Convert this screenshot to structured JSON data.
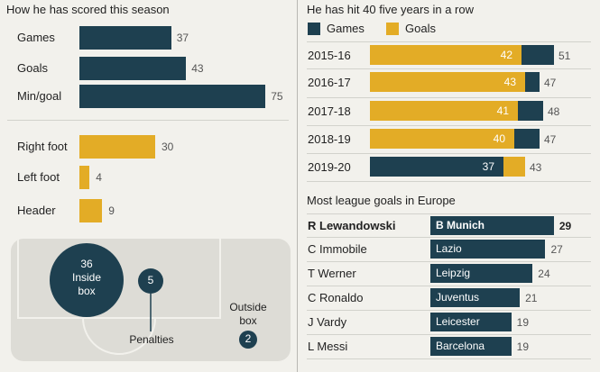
{
  "colors": {
    "navy": "#1e4050",
    "gold": "#e3ac26",
    "pitch": "#dddcd6"
  },
  "left": {
    "title": "How he has scored this season",
    "stats": [
      {
        "label": "Games",
        "value": 37
      },
      {
        "label": "Goals",
        "value": 43
      },
      {
        "label": "Min/goal",
        "value": 75
      }
    ],
    "methods": [
      {
        "label": "Right foot",
        "value": 30
      },
      {
        "label": "Left foot",
        "value": 4
      },
      {
        "label": "Header",
        "value": 9
      }
    ],
    "zones": {
      "inside_box": {
        "value": "36",
        "label_line1": "Inside",
        "label_line2": "box"
      },
      "penalties": {
        "value": "5",
        "label": "Penalties"
      },
      "outside_box": {
        "value": "2",
        "label_line1": "Outside",
        "label_line2": "box"
      }
    }
  },
  "right": {
    "title": "He has hit 40 five years in a row",
    "legend": {
      "games": "Games",
      "goals": "Goals"
    },
    "seasons": [
      {
        "season": "2015-16",
        "goals": 42,
        "games": 51
      },
      {
        "season": "2016-17",
        "goals": 43,
        "games": 47
      },
      {
        "season": "2017-18",
        "goals": 41,
        "games": 48
      },
      {
        "season": "2018-19",
        "goals": 40,
        "games": 47
      },
      {
        "season": "2019-20",
        "goals": 43,
        "games": 37
      }
    ],
    "league_title": "Most league goals in Europe",
    "league": [
      {
        "player": "R Lewandowski",
        "team": "B Munich",
        "goals": 29,
        "highlight": true
      },
      {
        "player": "C Immobile",
        "team": "Lazio",
        "goals": 27
      },
      {
        "player": "T Werner",
        "team": "Leipzig",
        "goals": 24
      },
      {
        "player": "C Ronaldo",
        "team": "Juventus",
        "goals": 21
      },
      {
        "player": "J Vardy",
        "team": "Leicester",
        "goals": 19
      },
      {
        "player": "L Messi",
        "team": "Barcelona",
        "goals": 19
      }
    ]
  },
  "chart_data": [
    {
      "type": "bar",
      "title": "How he has scored this season",
      "categories": [
        "Games",
        "Goals",
        "Min/goal"
      ],
      "values": [
        37,
        43,
        75
      ]
    },
    {
      "type": "bar",
      "title": "How he has scored this season",
      "categories": [
        "Right foot",
        "Left foot",
        "Header"
      ],
      "values": [
        30,
        4,
        9
      ]
    },
    {
      "type": "bar",
      "title": "He has hit 40 five years in a row",
      "categories": [
        "2015-16",
        "2016-17",
        "2017-18",
        "2018-19",
        "2019-20"
      ],
      "series": [
        {
          "name": "Games",
          "values": [
            51,
            47,
            48,
            47,
            37
          ]
        },
        {
          "name": "Goals",
          "values": [
            42,
            43,
            41,
            40,
            43
          ]
        }
      ],
      "legend": "top"
    },
    {
      "type": "bar",
      "title": "Most league goals in Europe",
      "categories": [
        "R Lewandowski",
        "C Immobile",
        "T Werner",
        "C Ronaldo",
        "J Vardy",
        "L Messi"
      ],
      "teams": [
        "B Munich",
        "Lazio",
        "Leipzig",
        "Juventus",
        "Leicester",
        "Barcelona"
      ],
      "values": [
        29,
        27,
        24,
        21,
        19,
        19
      ]
    }
  ]
}
